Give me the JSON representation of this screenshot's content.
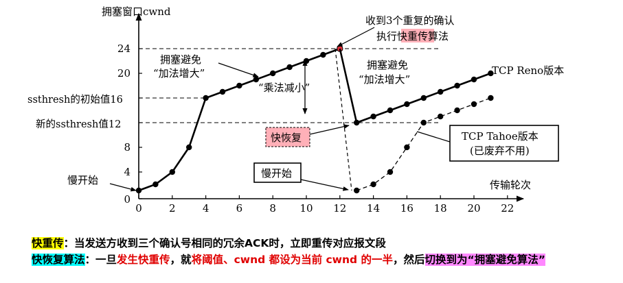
{
  "title": "拥塞窗口cwnd",
  "xlabel": "传输轮次",
  "annotations": {
    "fast_retransmit_line1": "收到3个重复的确认",
    "fast_retransmit_line2_a": "执行",
    "fast_retransmit_line2_b": "快重传",
    "fast_retransmit_line2_c": "算法",
    "avoid1_line1": "拥塞避免",
    "avoid1_line2": "“加法增大”",
    "avoid2_line1": "拥塞避免",
    "avoid2_line2": "“加法增大”",
    "mult_decrease": "“乘法减小”",
    "reno": "TCP Reno版本",
    "tahoe_line1": "TCP Tahoe版本",
    "tahoe_line2": "(已废弃不用)",
    "fast_recovery": "快恢复",
    "slow_start_box": "慢开始",
    "slow_start_left": "慢开始",
    "ssthresh_init": "ssthresh的初始值16",
    "ssthresh_new": "新的ssthresh值12"
  },
  "captions": {
    "line1_label": "快重传",
    "line1_text": "：当发送方收到三个确认号相同的冗余ACK时，立即重传对应报文段",
    "line2_label": "快恢复算法",
    "line2_a": "：一旦",
    "line2_b": "发生快重传",
    "line2_c": "，就",
    "line2_d": "将阈值、cwnd 都设为当前 cwnd 的一半",
    "line2_e": "，然后",
    "line2_f": "切换到为“拥塞避免算法”"
  },
  "colors": {
    "highlight_pink": "#ffb0b8",
    "highlight_yellow": "#ffff00",
    "highlight_cyan": "#00ffff",
    "highlight_magenta": "#ff88ff",
    "red_text": "#e00000",
    "red_point": "#e0303a",
    "line": "#000000"
  },
  "chart_data": {
    "type": "line",
    "x_ticks": [
      0,
      2,
      4,
      6,
      8,
      10,
      12,
      14,
      16,
      18,
      20,
      22
    ],
    "y_ticks": [
      0,
      4,
      8,
      12,
      16,
      20,
      24
    ],
    "xlim": [
      0,
      22
    ],
    "ylim": [
      0,
      24
    ],
    "series": [
      {
        "name": "",
        "style": "solid",
        "points": [
          [
            0,
            1
          ],
          [
            1,
            2
          ],
          [
            2,
            4
          ],
          [
            3,
            8
          ],
          [
            4,
            16
          ],
          [
            5,
            17
          ],
          [
            6,
            18
          ],
          [
            7,
            19
          ],
          [
            8,
            20
          ],
          [
            9,
            21
          ],
          [
            10,
            22
          ],
          [
            11,
            23
          ],
          [
            12,
            24
          ]
        ]
      },
      {
        "name": "TCP Reno版本",
        "style": "solid",
        "points": [
          [
            13,
            12
          ],
          [
            14,
            13
          ],
          [
            15,
            14
          ],
          [
            16,
            15
          ],
          [
            17,
            16
          ],
          [
            18,
            17
          ],
          [
            19,
            18
          ],
          [
            20,
            19
          ],
          [
            21,
            20
          ]
        ]
      },
      {
        "name": "TCP Tahoe版本",
        "style": "dashed",
        "points": [
          [
            13,
            1
          ],
          [
            14,
            2
          ],
          [
            15,
            4
          ],
          [
            16,
            8
          ],
          [
            17,
            12
          ],
          [
            18,
            13
          ],
          [
            19,
            14
          ],
          [
            20,
            15
          ],
          [
            21,
            16
          ]
        ]
      }
    ],
    "reference_lines": [
      16,
      12,
      24
    ]
  }
}
